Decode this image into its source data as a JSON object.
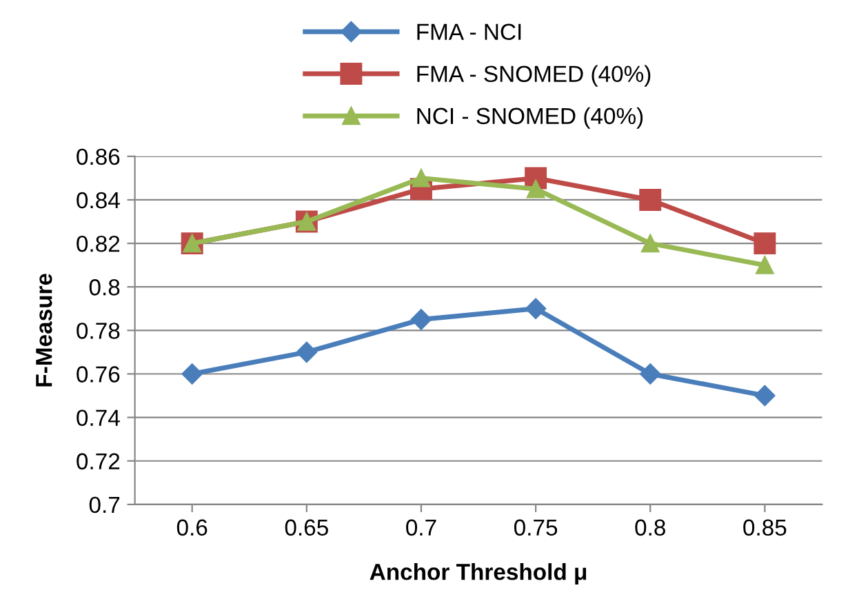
{
  "chart_data": {
    "type": "line",
    "xlabel": "Anchor Threshold μ",
    "ylabel": "F-Measure",
    "categories": [
      "0.6",
      "0.65",
      "0.7",
      "0.75",
      "0.8",
      "0.85"
    ],
    "series": [
      {
        "name": "FMA - NCI",
        "color": "#4a7ebb",
        "marker": "diamond",
        "values": [
          0.76,
          0.77,
          0.785,
          0.79,
          0.76,
          0.75
        ]
      },
      {
        "name": "FMA - SNOMED (40%)",
        "color": "#be4b48",
        "marker": "square",
        "values": [
          0.82,
          0.83,
          0.845,
          0.85,
          0.84,
          0.82
        ]
      },
      {
        "name": "NCI - SNOMED (40%)",
        "color": "#98b954",
        "marker": "triangle",
        "values": [
          0.82,
          0.83,
          0.85,
          0.845,
          0.82,
          0.81
        ]
      }
    ],
    "ylim": [
      0.7,
      0.86
    ],
    "yticks": [
      0.7,
      0.72,
      0.74,
      0.76,
      0.78,
      0.8,
      0.82,
      0.84,
      0.86
    ],
    "grid": "y",
    "legend": "top",
    "line_style": "solid"
  }
}
